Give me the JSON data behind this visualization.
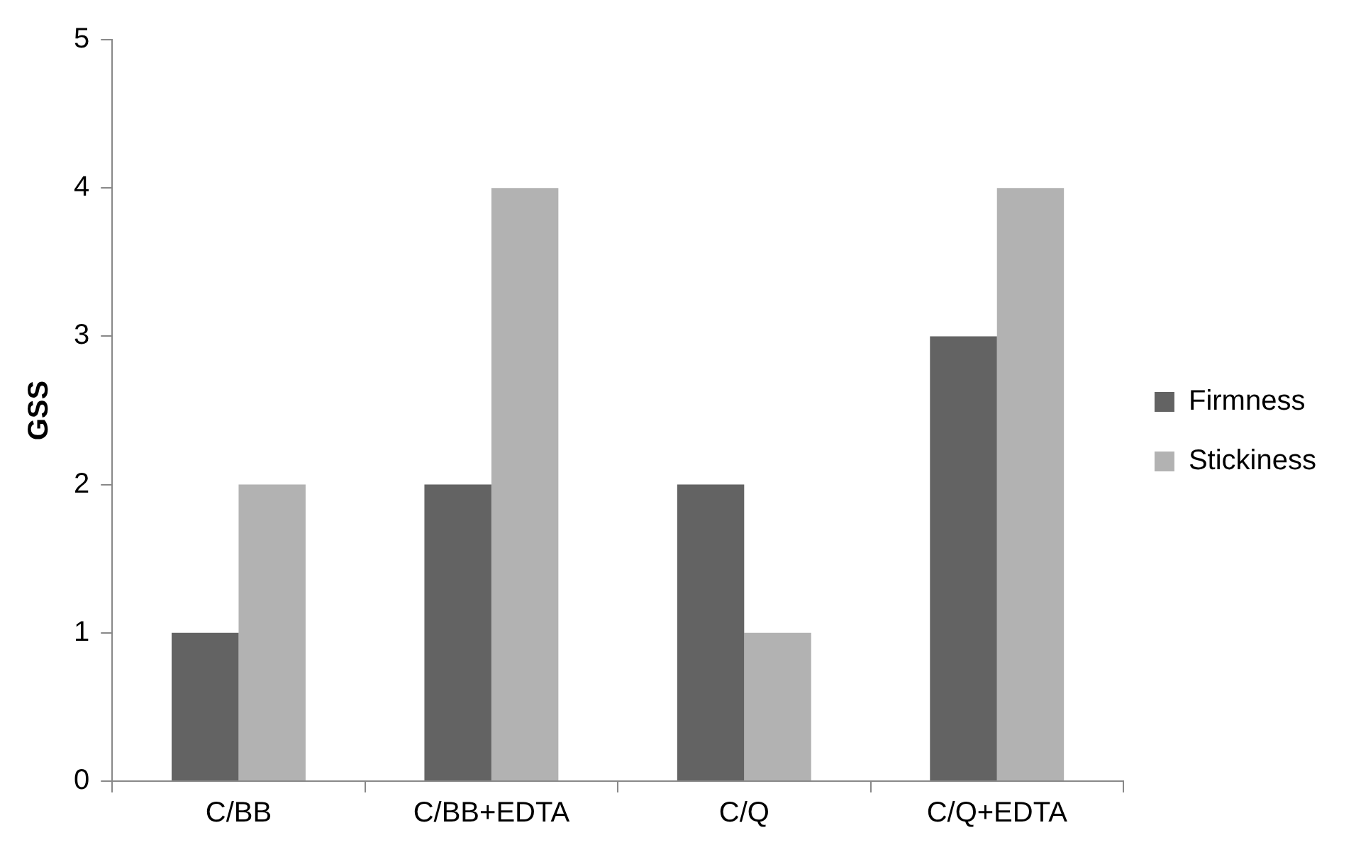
{
  "chart_data": {
    "type": "bar",
    "ylabel": "GSS",
    "categories": [
      "C/BB",
      "C/BB+EDTA",
      "C/Q",
      "C/Q+EDTA"
    ],
    "series": [
      {
        "name": "Firmness",
        "color": "#636363",
        "values": [
          1,
          2,
          2,
          3
        ]
      },
      {
        "name": "Stickiness",
        "color": "#b2b2b2",
        "values": [
          2,
          4,
          1,
          4
        ]
      }
    ],
    "ylim": [
      0,
      5
    ],
    "yticks": [
      0,
      1,
      2,
      3,
      4,
      5
    ],
    "grid": false,
    "legend": "right"
  }
}
